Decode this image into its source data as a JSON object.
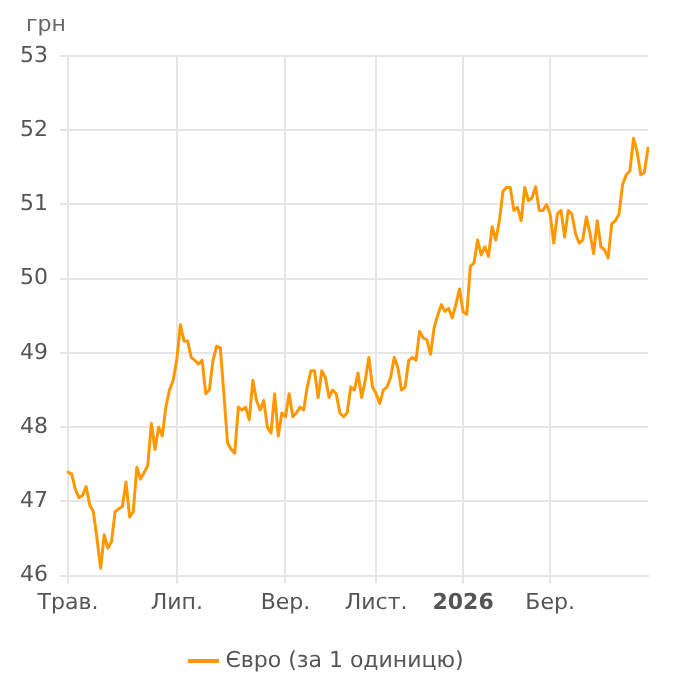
{
  "chart_data": {
    "type": "line",
    "ylabel": "грн",
    "categories": [
      "Трав.",
      null,
      null,
      null,
      null,
      null,
      null,
      null,
      null,
      null,
      null,
      null,
      null,
      null,
      null,
      null,
      null,
      null,
      null,
      null,
      null,
      null,
      null,
      null,
      null,
      null,
      null,
      null,
      null,
      null,
      "Лип.",
      null,
      null,
      null,
      null,
      null,
      null,
      null,
      null,
      null,
      null,
      null,
      null,
      null,
      null,
      null,
      null,
      null,
      null,
      null,
      null,
      null,
      null,
      null,
      null,
      null,
      null,
      null,
      null,
      null,
      "Вер.",
      null,
      null,
      null,
      null,
      null,
      null,
      null,
      null,
      null,
      null,
      null,
      null,
      null,
      null,
      null,
      null,
      null,
      null,
      null,
      null,
      null,
      null,
      null,
      null,
      "Лист.",
      null,
      null,
      null,
      null,
      null,
      null,
      null,
      null,
      null,
      null,
      null,
      null,
      null,
      null,
      null,
      null,
      null,
      null,
      null,
      null,
      null,
      null,
      null,
      "2026",
      null,
      null,
      null,
      null,
      null,
      null,
      null,
      null,
      null,
      null,
      null,
      null,
      null,
      null,
      null,
      null,
      null,
      null,
      null,
      null,
      null,
      null,
      null,
      "Бер.",
      null,
      null,
      null,
      null,
      null,
      null,
      null,
      null,
      null,
      null,
      null,
      null,
      null,
      null,
      null,
      null,
      null,
      null,
      null,
      null,
      null,
      null,
      null,
      null,
      null,
      null,
      null
    ],
    "series": [
      {
        "name": "Євро (за 1 одиницю)",
        "color": "#ff9800",
        "values": [
          47.39,
          47.37,
          47.17,
          47.05,
          47.08,
          47.2,
          46.95,
          46.86,
          46.5,
          46.1,
          46.55,
          46.37,
          46.46,
          46.86,
          46.9,
          46.93,
          47.26,
          46.79,
          46.86,
          47.46,
          47.3,
          47.39,
          47.48,
          48.05,
          47.7,
          48.0,
          47.88,
          48.27,
          48.5,
          48.63,
          48.9,
          49.38,
          49.16,
          49.16,
          48.94,
          48.9,
          48.85,
          48.9,
          48.45,
          48.5,
          48.9,
          49.09,
          49.07,
          48.45,
          47.79,
          47.7,
          47.65,
          48.27,
          48.23,
          48.27,
          48.1,
          48.63,
          48.36,
          48.23,
          48.36,
          48.0,
          47.92,
          48.45,
          47.88,
          48.19,
          48.14,
          48.45,
          48.14,
          48.19,
          48.27,
          48.23,
          48.54,
          48.76,
          48.76,
          48.4,
          48.76,
          48.67,
          48.4,
          48.5,
          48.45,
          48.19,
          48.14,
          48.19,
          48.54,
          48.5,
          48.73,
          48.4,
          48.63,
          48.94,
          48.54,
          48.45,
          48.32,
          48.5,
          48.54,
          48.67,
          48.94,
          48.8,
          48.5,
          48.54,
          48.9,
          48.94,
          48.9,
          49.29,
          49.2,
          49.18,
          48.98,
          49.34,
          49.51,
          49.65,
          49.56,
          49.6,
          49.47,
          49.65,
          49.86,
          49.55,
          49.52,
          50.17,
          50.21,
          50.52,
          50.32,
          50.43,
          50.3,
          50.7,
          50.52,
          50.78,
          51.18,
          51.23,
          51.23,
          50.92,
          50.96,
          50.78,
          51.23,
          51.05,
          51.09,
          51.24,
          50.92,
          50.92,
          51.0,
          50.87,
          50.48,
          50.87,
          50.92,
          50.56,
          50.92,
          50.87,
          50.61,
          50.48,
          50.52,
          50.83,
          50.61,
          50.34,
          50.78,
          50.43,
          50.39,
          50.28,
          50.74,
          50.78,
          50.87,
          51.27,
          51.4,
          51.45,
          51.89,
          51.71,
          51.4,
          51.43,
          51.76
        ]
      }
    ],
    "ylim": [
      46,
      53
    ],
    "yticks": [
      46,
      47,
      48,
      49,
      50,
      51,
      52,
      53
    ],
    "grid": true,
    "legend": "bottom",
    "marker": "none",
    "line_style": "solid"
  }
}
